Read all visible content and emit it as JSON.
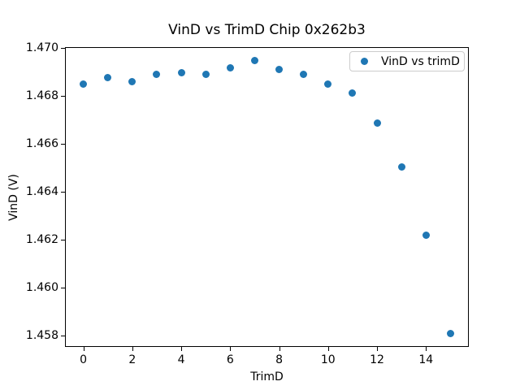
{
  "figure": {
    "title": "VinD vs TrimD Chip 0x262b3",
    "xlabel": "TrimD",
    "ylabel": "VinD (V)"
  },
  "chart_data": {
    "type": "scatter",
    "title": "VinD vs TrimD Chip 0x262b3",
    "xlabel": "TrimD",
    "ylabel": "VinD (V)",
    "legend": [
      "VinD vs trimD"
    ],
    "legend_position": "upper right",
    "marker_color": "#1f77b4",
    "grid": false,
    "x": [
      0,
      1,
      2,
      3,
      4,
      5,
      6,
      7,
      8,
      9,
      10,
      11,
      12,
      13,
      14,
      15
    ],
    "y": [
      1.4685,
      1.46875,
      1.46858,
      1.4689,
      1.46897,
      1.46888,
      1.46918,
      1.46946,
      1.4691,
      1.4689,
      1.4685,
      1.46812,
      1.46685,
      1.46502,
      1.4622,
      1.4581
    ],
    "xlim": [
      -0.75,
      15.75
    ],
    "ylim": [
      1.45753,
      1.47003
    ],
    "xticks": [
      0,
      2,
      4,
      6,
      8,
      10,
      12,
      14
    ],
    "yticks": [
      1.458,
      1.46,
      1.462,
      1.464,
      1.466,
      1.468,
      1.47
    ],
    "ytick_decimals": 3
  }
}
